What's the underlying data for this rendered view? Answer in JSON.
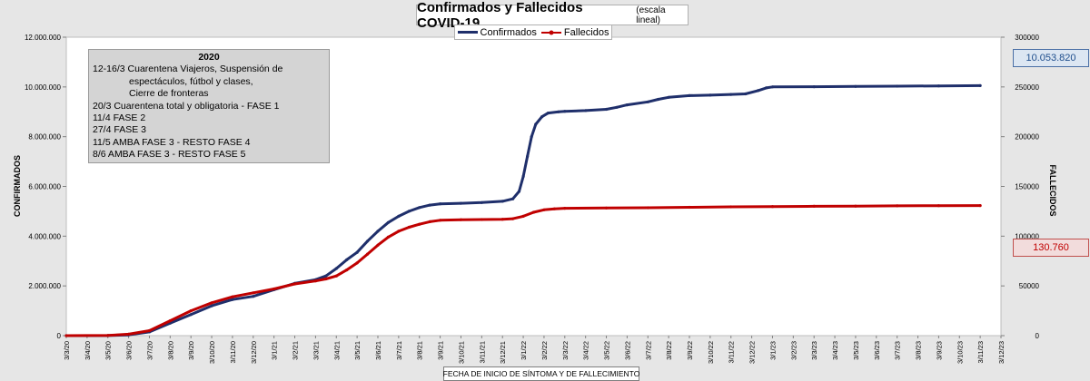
{
  "chart_data": {
    "type": "line",
    "title": "Confirmados  y Fallecidos COVID-19",
    "subtitle": "(escala lineal)",
    "xlabel": "FECHA DE INICIO  DE SÍNTOMA  Y DE FALLECIMIENTO",
    "ylabel_left": "CONFIRMADOS",
    "ylabel_right": "FALLECIDOS",
    "ylim_left": [
      0,
      12000000
    ],
    "ylim_right": [
      0,
      300000
    ],
    "yticks_left": [
      "0",
      "2.000.000",
      "4.000.000",
      "6.000.000",
      "8.000.000",
      "10.000.000",
      "12.000.000"
    ],
    "yticks_right": [
      "0",
      "50000",
      "100000",
      "150000",
      "200000",
      "250000",
      "300000"
    ],
    "x_tick_labels": [
      "3/3/20",
      "3/4/20",
      "3/5/20",
      "3/6/20",
      "3/7/20",
      "3/8/20",
      "3/9/20",
      "3/10/20",
      "3/11/20",
      "3/12/20",
      "3/1/21",
      "3/2/21",
      "3/3/21",
      "3/4/21",
      "3/5/21",
      "3/6/21",
      "3/7/21",
      "3/8/21",
      "3/9/21",
      "3/10/21",
      "3/11/21",
      "3/12/21",
      "3/1/22",
      "3/2/22",
      "3/3/22",
      "3/4/22",
      "3/5/22",
      "3/6/22",
      "3/7/22",
      "3/8/22",
      "3/9/22",
      "3/10/22",
      "3/11/22",
      "3/12/22",
      "3/1/23",
      "3/2/23",
      "3/3/23",
      "3/4/23",
      "3/5/23",
      "3/6/23",
      "3/7/23",
      "3/8/23",
      "3/9/23",
      "3/10/23",
      "3/11/23",
      "3/12/23"
    ],
    "legend_position": "top-center",
    "grid": false,
    "series": [
      {
        "name": "Confirmados",
        "axis": "left",
        "color": "#1f2f6b",
        "points": [
          [
            0,
            0
          ],
          [
            2,
            5000
          ],
          [
            3,
            30000
          ],
          [
            4,
            150000
          ],
          [
            5,
            500000
          ],
          [
            6,
            850000
          ],
          [
            7,
            1200000
          ],
          [
            8,
            1450000
          ],
          [
            9,
            1580000
          ],
          [
            10,
            1850000
          ],
          [
            11,
            2100000
          ],
          [
            12,
            2250000
          ],
          [
            12.5,
            2400000
          ],
          [
            13,
            2700000
          ],
          [
            13.5,
            3050000
          ],
          [
            14,
            3350000
          ],
          [
            14.5,
            3800000
          ],
          [
            15,
            4200000
          ],
          [
            15.5,
            4550000
          ],
          [
            16,
            4800000
          ],
          [
            16.5,
            5000000
          ],
          [
            17,
            5150000
          ],
          [
            17.5,
            5250000
          ],
          [
            18,
            5300000
          ],
          [
            19,
            5320000
          ],
          [
            20,
            5350000
          ],
          [
            21,
            5400000
          ],
          [
            21.5,
            5500000
          ],
          [
            21.8,
            5800000
          ],
          [
            22,
            6400000
          ],
          [
            22.2,
            7200000
          ],
          [
            22.4,
            8000000
          ],
          [
            22.6,
            8500000
          ],
          [
            22.9,
            8800000
          ],
          [
            23.2,
            8950000
          ],
          [
            23.7,
            9000000
          ],
          [
            24,
            9020000
          ],
          [
            25,
            9050000
          ],
          [
            26,
            9100000
          ],
          [
            26.5,
            9180000
          ],
          [
            27,
            9280000
          ],
          [
            28,
            9400000
          ],
          [
            28.5,
            9500000
          ],
          [
            29,
            9580000
          ],
          [
            30,
            9650000
          ],
          [
            31,
            9670000
          ],
          [
            32,
            9700000
          ],
          [
            32.7,
            9720000
          ],
          [
            33.3,
            9850000
          ],
          [
            33.7,
            9960000
          ],
          [
            34,
            10000000
          ],
          [
            36,
            10010000
          ],
          [
            38,
            10020000
          ],
          [
            40,
            10030000
          ],
          [
            42,
            10040000
          ],
          [
            44,
            10053820
          ]
        ]
      },
      {
        "name": "Fallecidos",
        "axis": "right",
        "color": "#c00000",
        "points": [
          [
            0,
            0
          ],
          [
            2,
            200
          ],
          [
            3,
            1500
          ],
          [
            4,
            5000
          ],
          [
            5,
            15000
          ],
          [
            6,
            25000
          ],
          [
            7,
            33000
          ],
          [
            8,
            39000
          ],
          [
            9,
            43000
          ],
          [
            10,
            47000
          ],
          [
            11,
            52000
          ],
          [
            12,
            55000
          ],
          [
            12.5,
            57000
          ],
          [
            13,
            60000
          ],
          [
            13.5,
            66000
          ],
          [
            14,
            73000
          ],
          [
            14.5,
            82000
          ],
          [
            15,
            91000
          ],
          [
            15.5,
            99000
          ],
          [
            16,
            105000
          ],
          [
            16.5,
            109000
          ],
          [
            17,
            112000
          ],
          [
            17.5,
            114500
          ],
          [
            18,
            116000
          ],
          [
            19,
            116500
          ],
          [
            20,
            116700
          ],
          [
            21,
            117000
          ],
          [
            21.5,
            117500
          ],
          [
            22,
            120000
          ],
          [
            22.5,
            124000
          ],
          [
            23,
            126500
          ],
          [
            23.5,
            127500
          ],
          [
            24,
            128000
          ],
          [
            26,
            128300
          ],
          [
            28,
            128600
          ],
          [
            30,
            129000
          ],
          [
            32,
            129500
          ],
          [
            34,
            129800
          ],
          [
            36,
            130000
          ],
          [
            38,
            130200
          ],
          [
            40,
            130500
          ],
          [
            42,
            130650
          ],
          [
            44,
            130760
          ]
        ]
      }
    ]
  },
  "callouts": {
    "confirmados_total": "10.053.820",
    "fallecidos_total": "130.760"
  },
  "notes": {
    "title": "2020",
    "lines": [
      {
        "text": "12-16/3  Cuarentena Viajeros, Suspensión de",
        "indent": false
      },
      {
        "text": "espectáculos, fútbol y clases,",
        "indent": true
      },
      {
        "text": "Cierre de fronteras",
        "indent": true
      },
      {
        "text": "20/3  Cuarentena total y obligatoria - FASE 1",
        "indent": false
      },
      {
        "text": "11/4  FASE 2",
        "indent": false
      },
      {
        "text": "27/4  FASE 3",
        "indent": false
      },
      {
        "text": "11/5  AMBA FASE 3 - RESTO FASE 4",
        "indent": false
      },
      {
        "text": "8/6  AMBA FASE 3 - RESTO FASE 5",
        "indent": false
      }
    ]
  }
}
